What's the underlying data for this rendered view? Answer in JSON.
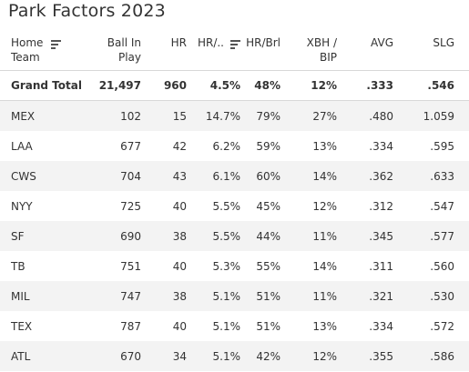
{
  "title": "Park Factors 2023",
  "header": {
    "team_line1": "Home",
    "team_line2": "Team",
    "bip_line1": "Ball In",
    "bip_line2": "Play",
    "hr": "HR",
    "hr_rate": "HR/..",
    "hr_brl": "HR/Brl",
    "xbh_line1": "XBH /",
    "xbh_line2": "BIP",
    "avg": "AVG",
    "slg": "SLG"
  },
  "total": {
    "team": "Grand Total",
    "bip": "21,497",
    "hr": "960",
    "hr_rate": "4.5%",
    "hr_brl": "48%",
    "xbh": "12%",
    "avg": ".333",
    "slg": ".546"
  },
  "rows": [
    {
      "team": "MEX",
      "bip": "102",
      "hr": "15",
      "hr_rate": "14.7%",
      "hr_brl": "79%",
      "xbh": "27%",
      "avg": ".480",
      "slg": "1.059"
    },
    {
      "team": "LAA",
      "bip": "677",
      "hr": "42",
      "hr_rate": "6.2%",
      "hr_brl": "59%",
      "xbh": "13%",
      "avg": ".334",
      "slg": ".595"
    },
    {
      "team": "CWS",
      "bip": "704",
      "hr": "43",
      "hr_rate": "6.1%",
      "hr_brl": "60%",
      "xbh": "14%",
      "avg": ".362",
      "slg": ".633"
    },
    {
      "team": "NYY",
      "bip": "725",
      "hr": "40",
      "hr_rate": "5.5%",
      "hr_brl": "45%",
      "xbh": "12%",
      "avg": ".312",
      "slg": ".547"
    },
    {
      "team": "SF",
      "bip": "690",
      "hr": "38",
      "hr_rate": "5.5%",
      "hr_brl": "44%",
      "xbh": "11%",
      "avg": ".345",
      "slg": ".577"
    },
    {
      "team": "TB",
      "bip": "751",
      "hr": "40",
      "hr_rate": "5.3%",
      "hr_brl": "55%",
      "xbh": "14%",
      "avg": ".311",
      "slg": ".560"
    },
    {
      "team": "MIL",
      "bip": "747",
      "hr": "38",
      "hr_rate": "5.1%",
      "hr_brl": "51%",
      "xbh": "11%",
      "avg": ".321",
      "slg": ".530"
    },
    {
      "team": "TEX",
      "bip": "787",
      "hr": "40",
      "hr_rate": "5.1%",
      "hr_brl": "51%",
      "xbh": "13%",
      "avg": ".334",
      "slg": ".572"
    },
    {
      "team": "ATL",
      "bip": "670",
      "hr": "34",
      "hr_rate": "5.1%",
      "hr_brl": "42%",
      "xbh": "12%",
      "avg": ".355",
      "slg": ".586"
    }
  ],
  "icons": {
    "sort": "sort-descending-icon"
  }
}
